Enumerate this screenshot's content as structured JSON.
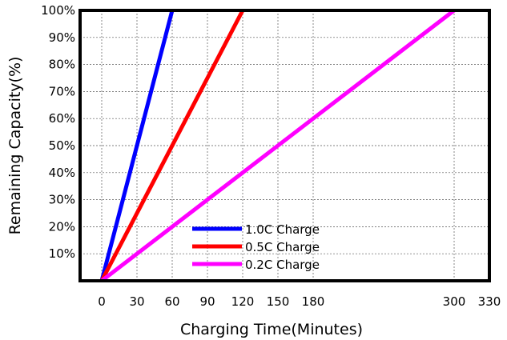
{
  "chart_data": {
    "type": "line",
    "title": "",
    "xlabel": "Charging Time(Minutes)",
    "ylabel": "Remaining  Capacity(%)",
    "xlim": [
      0,
      330
    ],
    "ylim": [
      0,
      100
    ],
    "x_ticks": [
      0,
      30,
      60,
      90,
      120,
      150,
      180,
      300,
      330
    ],
    "x_tick_labels": [
      "0",
      "30",
      "60",
      "90",
      "120",
      "150",
      "180",
      "300",
      "330"
    ],
    "y_ticks": [
      10,
      20,
      30,
      40,
      50,
      60,
      70,
      80,
      90,
      100
    ],
    "y_tick_labels": [
      "10%",
      "20%",
      "30%",
      "40%",
      "50%",
      "60%",
      "70%",
      "80%",
      "90%",
      "100%"
    ],
    "grid": true,
    "legend_position": "bottom-center",
    "series": [
      {
        "name": "1.0C Charge",
        "color": "#0000ff",
        "x": [
          0,
          60
        ],
        "y": [
          0,
          100
        ]
      },
      {
        "name": "0.5C Charge",
        "color": "#ff0000",
        "x": [
          0,
          120
        ],
        "y": [
          0,
          100
        ]
      },
      {
        "name": "0.2C Charge",
        "color": "#ff00ff",
        "x": [
          0,
          300
        ],
        "y": [
          0,
          100
        ]
      }
    ]
  }
}
